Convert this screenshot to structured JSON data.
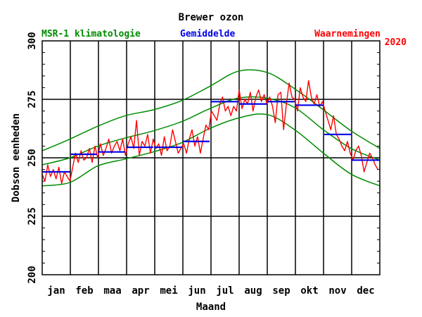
{
  "chart_data": {
    "type": "line",
    "title": "Brewer ozon",
    "year_label": "2020",
    "xlabel": "Maand",
    "ylabel": "Dobson eenheden",
    "ylim": [
      200,
      300
    ],
    "xlim": [
      1,
      366
    ],
    "yticks": [
      "200",
      "225",
      "250",
      "275",
      "300"
    ],
    "months": [
      "jan",
      "feb",
      "maa",
      "apr",
      "mei",
      "jun",
      "jul",
      "aug",
      "sep",
      "okt",
      "nov",
      "dec"
    ],
    "grid": true,
    "legend_position": "top",
    "legend": {
      "climatology": "MSR-1 klimatologie",
      "mean": "Gemiddelde",
      "observations": "Waarnemingen"
    },
    "colors": {
      "climatology": "#008c00",
      "mean": "#0000e6",
      "observations": "#ff0000",
      "grid": "#000000"
    },
    "climatology_mean": {
      "x": [
        1,
        31,
        61,
        91,
        121,
        152,
        182,
        213,
        244,
        274,
        305,
        335,
        366
      ],
      "y": [
        247.0,
        250.0,
        255.0,
        258.5,
        261.5,
        265.5,
        271.0,
        275.5,
        275.5,
        271.5,
        262.0,
        254.0,
        249.0
      ]
    },
    "climatology_upper": {
      "x": [
        1,
        31,
        61,
        91,
        121,
        152,
        182,
        213,
        244,
        274,
        305,
        335,
        366
      ],
      "y": [
        253.0,
        258.0,
        263.5,
        268.0,
        270.5,
        274.5,
        280.5,
        287.0,
        286.5,
        279.5,
        270.5,
        261.5,
        254.0
      ]
    },
    "climatology_lower": {
      "x": [
        1,
        31,
        61,
        91,
        121,
        152,
        182,
        213,
        244,
        274,
        305,
        335,
        366
      ],
      "y": [
        238.0,
        239.5,
        246.5,
        249.5,
        252.5,
        256.5,
        262.5,
        267.0,
        268.5,
        262.0,
        252.0,
        243.0,
        238.0
      ]
    },
    "monthly_mean": [
      {
        "month": "jan",
        "x0": 1,
        "x1": 31,
        "y": 244.0
      },
      {
        "month": "feb",
        "x0": 32,
        "x1": 60,
        "y": 251.5
      },
      {
        "month": "maa",
        "x0": 61,
        "x1": 91,
        "y": 252.5
      },
      {
        "month": "apr",
        "x0": 92,
        "x1": 121,
        "y": 254.5
      },
      {
        "month": "mei",
        "x0": 122,
        "x1": 152,
        "y": 254.5
      },
      {
        "month": "jun",
        "x0": 153,
        "x1": 182,
        "y": 257.0
      },
      {
        "month": "jul",
        "x0": 183,
        "x1": 213,
        "y": 274.0
      },
      {
        "month": "aug",
        "x0": 214,
        "x1": 244,
        "y": 273.0
      },
      {
        "month": "sep",
        "x0": 245,
        "x1": 274,
        "y": 274.0
      },
      {
        "month": "okt",
        "x0": 275,
        "x1": 305,
        "y": 272.5
      },
      {
        "month": "nov",
        "x0": 306,
        "x1": 335,
        "y": 260.0
      },
      {
        "month": "dec",
        "x0": 336,
        "x1": 366,
        "y": 249.0
      }
    ],
    "observations": {
      "x": [
        1,
        4,
        7,
        10,
        13,
        16,
        19,
        22,
        25,
        28,
        31,
        34,
        37,
        40,
        43,
        46,
        49,
        52,
        55,
        58,
        61,
        64,
        67,
        70,
        73,
        76,
        79,
        82,
        85,
        88,
        91,
        94,
        97,
        100,
        103,
        106,
        109,
        112,
        115,
        118,
        121,
        124,
        127,
        130,
        133,
        136,
        139,
        142,
        145,
        148,
        151,
        154,
        157,
        160,
        163,
        166,
        169,
        172,
        175,
        178,
        181,
        184,
        187,
        190,
        193,
        196,
        199,
        202,
        205,
        208,
        211,
        214,
        217,
        220,
        223,
        226,
        229,
        232,
        235,
        238,
        241,
        244,
        247,
        250,
        253,
        256,
        259,
        262,
        265,
        268,
        271,
        274,
        277,
        280,
        283,
        286,
        289,
        292,
        295,
        298,
        301,
        304,
        307,
        310,
        313,
        316,
        319,
        322,
        325,
        328,
        331,
        334,
        337,
        340,
        343,
        346,
        349,
        352,
        355,
        358,
        361,
        364
      ],
      "y": [
        243,
        240,
        247,
        242,
        245,
        241,
        246,
        239,
        244,
        242,
        240,
        246,
        252,
        248,
        253,
        249,
        250,
        254,
        248,
        255,
        250,
        256,
        251,
        254,
        258,
        252,
        255,
        257,
        253,
        258,
        251,
        256,
        259,
        254,
        266,
        251,
        257,
        255,
        260,
        252,
        258,
        254,
        256,
        251,
        259,
        253,
        255,
        262,
        257,
        252,
        254,
        256,
        252,
        258,
        262,
        255,
        259,
        252,
        258,
        264,
        262,
        270,
        268,
        266,
        273,
        276,
        270,
        272,
        268,
        272,
        270,
        279,
        271,
        275,
        273,
        278,
        270,
        276,
        279,
        274,
        277,
        273,
        276,
        272,
        265,
        277,
        278,
        262,
        273,
        282,
        276,
        275,
        270,
        280,
        276,
        274,
        283,
        276,
        273,
        277,
        272,
        274,
        270,
        266,
        262,
        268,
        260,
        258,
        255,
        253,
        257,
        252,
        249,
        253,
        255,
        251,
        244,
        248,
        252,
        250,
        247,
        245
      ]
    }
  }
}
